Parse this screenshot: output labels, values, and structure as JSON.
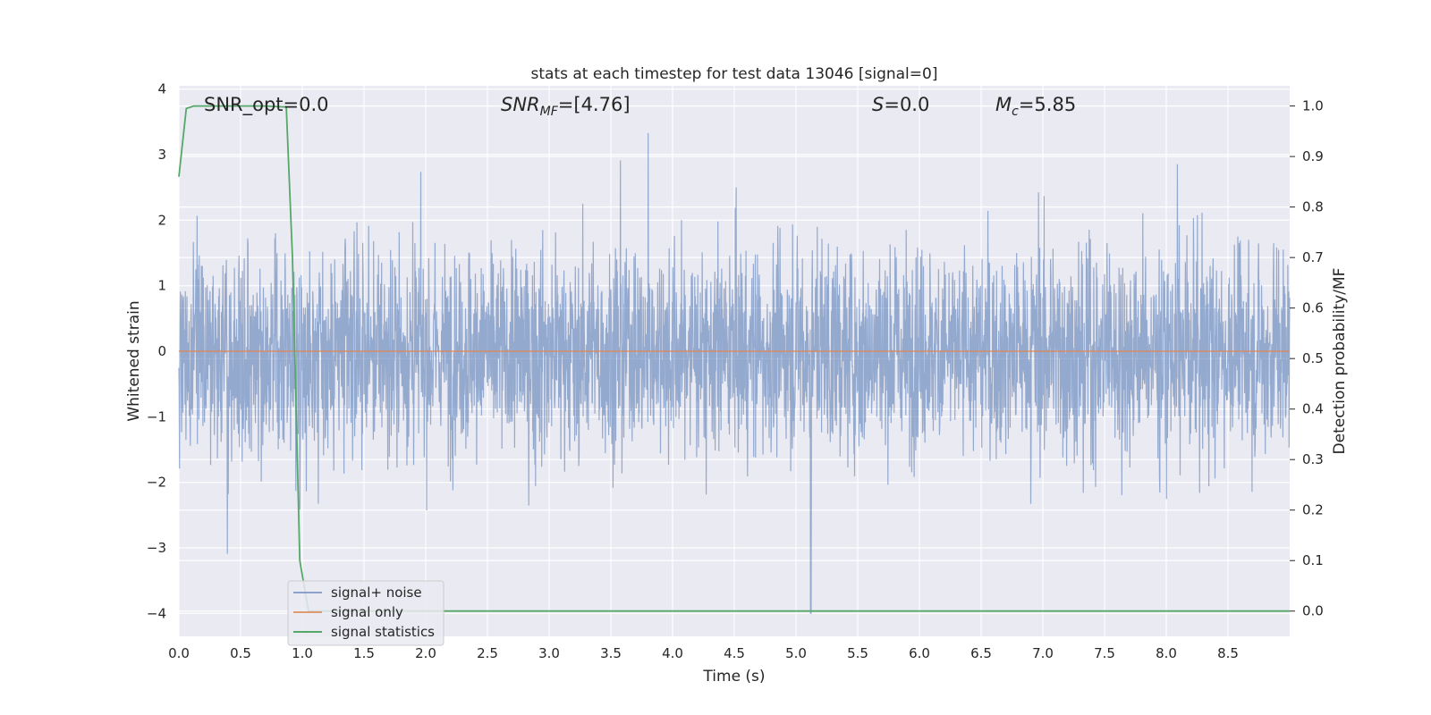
{
  "chart_data": {
    "type": "line",
    "title": "stats at each timestep for test data 13046 [signal=0]",
    "xlabel": "Time (s)",
    "ylabel_left": "Whitened strain",
    "ylabel_right": "Detection probability/MF",
    "xlim": [
      0.0,
      9.0
    ],
    "ylim_left": [
      -4.35,
      4.05
    ],
    "ylim_right": [
      -0.05,
      1.04
    ],
    "x_ticks": [
      "0.0",
      "0.5",
      "1.0",
      "1.5",
      "2.0",
      "2.5",
      "3.0",
      "3.5",
      "4.0",
      "4.5",
      "5.0",
      "5.5",
      "6.0",
      "6.5",
      "7.0",
      "7.5",
      "8.0",
      "8.5"
    ],
    "y_ticks_left": [
      "4",
      "3",
      "2",
      "1",
      "0",
      "−1",
      "−2",
      "−3",
      "−4"
    ],
    "y_ticks_right": [
      "1.0",
      "0.9",
      "0.8",
      "0.7",
      "0.6",
      "0.5",
      "0.4",
      "0.3",
      "0.2",
      "0.1",
      "0.0"
    ],
    "grid": true,
    "legend_position": "lower-left",
    "annotations": {
      "snr_opt": "SNR_opt=0.0",
      "snr_mf_main": "SNR",
      "snr_mf_sub": "MF",
      "snr_mf_value": "=[4.76]",
      "s_main": "S",
      "s_value": "=0.0",
      "mc_main": "M",
      "mc_sub": "c",
      "mc_value": "=5.85"
    },
    "series": [
      {
        "name": "signal+ noise",
        "color": "#4c72b0",
        "axis": "left",
        "description_values": {
          "typical_range": [
            -2.0,
            2.0
          ],
          "max": 3.6,
          "min": -4.0
        }
      },
      {
        "name": "signal only",
        "color": "#dd8452",
        "axis": "left",
        "x": [
          0.0,
          9.0
        ],
        "values": [
          0.0,
          0.0
        ]
      },
      {
        "name": "signal statistics",
        "color": "#55a868",
        "axis": "right",
        "x": [
          0.0,
          0.06,
          0.12,
          0.3,
          0.5,
          0.7,
          0.87,
          0.92,
          0.98,
          1.05,
          2.0,
          3.0,
          4.0,
          5.0,
          6.0,
          7.0,
          8.0,
          9.0
        ],
        "values": [
          0.86,
          0.995,
          1.0,
          1.0,
          1.0,
          1.0,
          0.998,
          0.7,
          0.1,
          0.0,
          0.0,
          0.0,
          0.0,
          0.0,
          0.0,
          0.0,
          0.0,
          0.0
        ]
      }
    ]
  },
  "colors": {
    "plot_background": "#eaeaf2",
    "grid": "#ffffff",
    "noise": "#4c72b0",
    "signal_only": "#dd8452",
    "statistics": "#55a868"
  }
}
